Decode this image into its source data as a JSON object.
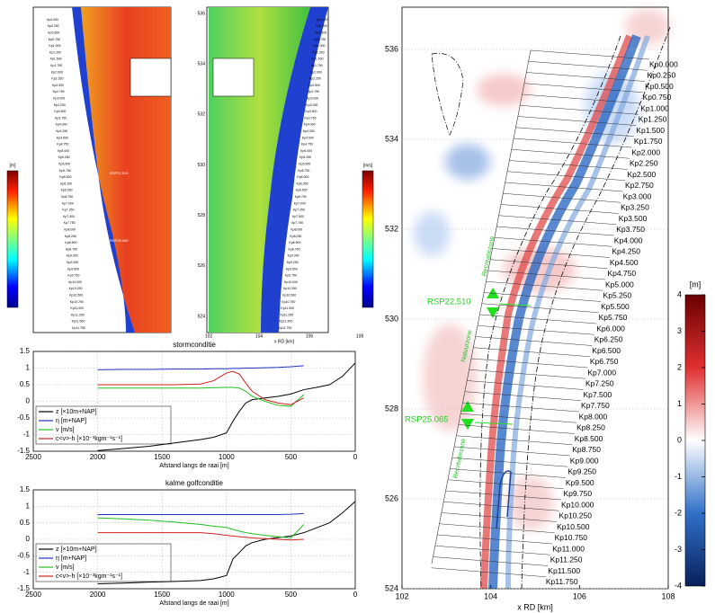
{
  "chart_data": [
    {
      "type": "line",
      "title": "stormconditie",
      "xlabel": "Afstand langs de raai [m]",
      "xlim": [
        2500,
        0
      ],
      "xticks": [
        2500,
        2000,
        1500,
        1000,
        500,
        0
      ],
      "ylim": [
        -1.5,
        1.5
      ],
      "yticks": [
        -1.5,
        -1,
        -0.5,
        0,
        0.5,
        1,
        1.5
      ],
      "grid": true,
      "legend": "lower left",
      "x": [
        2000,
        1800,
        1600,
        1400,
        1200,
        1100,
        1000,
        950,
        900,
        850,
        800,
        700,
        600,
        500,
        400,
        300,
        200,
        100,
        0
      ],
      "series": [
        {
          "name": "z [×10m+NAP]",
          "color": "#000000",
          "values": [
            -1.48,
            -1.42,
            -1.35,
            -1.25,
            -1.15,
            -1.08,
            -0.95,
            -0.6,
            -0.3,
            -0.05,
            0.05,
            0.1,
            0.15,
            0.22,
            0.35,
            0.42,
            0.5,
            0.75,
            1.15
          ]
        },
        {
          "name": "η [m+NAP]",
          "color": "#2030c0",
          "values": [
            0.95,
            0.96,
            0.96,
            0.97,
            0.97,
            0.98,
            0.98,
            0.99,
            0.99,
            1.0,
            1.0,
            1.01,
            1.02,
            1.04,
            1.07,
            null,
            null,
            null,
            null
          ]
        },
        {
          "name": "v [m/s]",
          "color": "#20c020",
          "values": [
            0.4,
            0.4,
            0.4,
            0.4,
            0.4,
            0.41,
            0.42,
            0.42,
            0.4,
            0.3,
            0.15,
            0.0,
            -0.12,
            -0.15,
            0.2,
            null,
            null,
            null,
            null
          ]
        },
        {
          "name": "c<v>-h [×10⁻³kgm⁻¹s⁻¹]",
          "color": "#d02020",
          "values": [
            0.5,
            0.5,
            0.5,
            0.5,
            0.52,
            0.62,
            0.85,
            0.9,
            0.82,
            0.55,
            0.3,
            0.05,
            -0.05,
            -0.1,
            0.1,
            null,
            null,
            null,
            null
          ]
        }
      ]
    },
    {
      "type": "line",
      "title": "kalme golfconditie",
      "xlabel": "Afstand langs de raai [m]",
      "xlim": [
        2500,
        0
      ],
      "xticks": [
        2500,
        2000,
        1500,
        1000,
        500,
        0
      ],
      "ylim": [
        -1.5,
        1.5
      ],
      "yticks": [
        -1.5,
        -1,
        -0.5,
        0,
        0.5,
        1,
        1.5
      ],
      "grid": true,
      "legend": "lower left",
      "x": [
        2000,
        1800,
        1600,
        1400,
        1200,
        1100,
        1000,
        950,
        900,
        850,
        800,
        700,
        600,
        500,
        400,
        300,
        200,
        100,
        0
      ],
      "series": [
        {
          "name": "z [×10m+NAP]",
          "color": "#000000",
          "values": [
            -1.35,
            -1.33,
            -1.3,
            -1.28,
            -1.25,
            -1.2,
            -1.1,
            -0.6,
            -0.4,
            -0.2,
            -0.1,
            0.0,
            0.05,
            0.1,
            0.2,
            0.35,
            0.5,
            0.8,
            1.15
          ]
        },
        {
          "name": "η [m+NAP]",
          "color": "#2030c0",
          "values": [
            0.75,
            0.75,
            0.75,
            0.75,
            0.75,
            0.75,
            0.75,
            0.75,
            0.75,
            0.75,
            0.75,
            0.75,
            0.75,
            0.76,
            0.78,
            null,
            null,
            null,
            null
          ]
        },
        {
          "name": "v [m/s]",
          "color": "#20c020",
          "values": [
            0.65,
            0.62,
            0.58,
            0.52,
            0.45,
            0.4,
            0.36,
            0.3,
            0.25,
            0.2,
            0.17,
            0.12,
            0.08,
            0.04,
            0.45,
            null,
            null,
            null,
            null
          ]
        },
        {
          "name": "c<v>-h [×10⁻³kgm⁻¹s⁻¹]",
          "color": "#d02020",
          "values": [
            0.2,
            0.2,
            0.2,
            0.2,
            0.2,
            0.17,
            0.12,
            0.1,
            0.08,
            0.06,
            0.04,
            0.02,
            0.0,
            -0.02,
            0.0,
            null,
            null,
            null,
            null
          ]
        }
      ]
    }
  ],
  "map": {
    "xlabel": "x RD [km]",
    "xlim": [
      102,
      108
    ],
    "ylim": [
      524,
      536.94
    ],
    "xticks": [
      102,
      104,
      106,
      108
    ],
    "yticks": [
      524,
      526,
      528,
      530,
      532,
      534,
      536
    ],
    "colorbar": {
      "label": "[m]",
      "lim": [
        -4,
        4
      ],
      "ticks": [
        -4,
        -3,
        -2,
        -1,
        0,
        1,
        2,
        3,
        4
      ]
    },
    "transects": [
      "Kp0.000",
      "Kp0.250",
      "Kp0.500",
      "Kp0.750",
      "Kp1.000",
      "Kp1.250",
      "Kp1.500",
      "Kp1.750",
      "Kp2.000",
      "Kp2.250",
      "Kp2.500",
      "Kp2.750",
      "Kp3.000",
      "Kp3.250",
      "Kp3.500",
      "Kp3.750",
      "Kp4.000",
      "Kp4.250",
      "Kp4.500",
      "Kp4.750",
      "Kp5.000",
      "Kp5.250",
      "Kp5.500",
      "Kp5.750",
      "Kp6.000",
      "Kp6.250",
      "Kp6.500",
      "Kp6.750",
      "Kp7.000",
      "Kp7.250",
      "Kp7.500",
      "Kp7.750",
      "Kp8.000",
      "Kp8.250",
      "Kp8.500",
      "Kp8.750",
      "Kp9.000",
      "Kp9.250",
      "Kp9.500",
      "Kp9.750",
      "Kp10.000",
      "Kp10.250",
      "Kp10.500",
      "Kp10.750",
      "Kp11.000",
      "Kp11.250",
      "Kp11.500",
      "Kp11.750"
    ],
    "annotations": [
      "RSP22.510",
      "RSP25.065"
    ],
    "zones": [
      "Recreatiezone",
      "Natuurzone",
      "Recreatiezone"
    ]
  },
  "flow_map": {
    "xlabel": "x RD [km]",
    "xticks": [
      102,
      104,
      106,
      108
    ],
    "yticks": [
      524,
      526,
      528,
      530,
      532,
      534,
      536
    ],
    "colorbar_label": "[m/s]",
    "depth_colorbar_label": "[m]"
  }
}
